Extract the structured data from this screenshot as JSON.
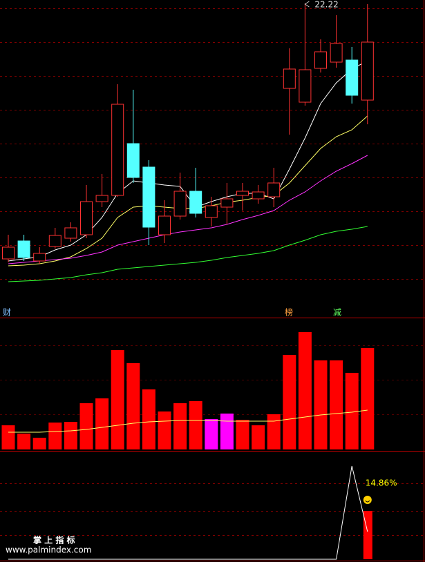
{
  "chart_data": [
    {
      "type": "candlestick",
      "open": [
        14.82,
        15.34,
        14.76,
        15.18,
        15.42,
        15.52,
        16.48,
        16.66,
        18.16,
        17.48,
        15.52,
        16.06,
        16.78,
        16.02,
        16.32,
        16.66,
        16.56,
        16.62,
        19.76,
        19.36,
        20.34,
        20.52,
        20.58,
        19.42
      ],
      "high": [
        15.52,
        15.52,
        15.16,
        15.72,
        15.88,
        16.96,
        17.28,
        19.88,
        19.72,
        17.68,
        16.52,
        17.32,
        17.46,
        16.62,
        17.02,
        17.02,
        16.96,
        17.46,
        20.92,
        22.22,
        21.18,
        21.88,
        20.96,
        22.2
      ],
      "low": [
        14.72,
        14.76,
        14.68,
        15.12,
        15.32,
        15.42,
        16.32,
        16.62,
        17.02,
        15.22,
        15.28,
        15.96,
        16.02,
        15.76,
        15.82,
        16.22,
        16.42,
        16.32,
        18.42,
        19.26,
        20.22,
        20.36,
        19.32,
        18.72
      ],
      "close": [
        15.16,
        14.86,
        14.98,
        15.5,
        15.72,
        16.48,
        16.66,
        19.3,
        17.18,
        15.74,
        16.06,
        16.78,
        16.14,
        16.36,
        16.56,
        16.78,
        16.76,
        17.02,
        20.32,
        20.3,
        20.82,
        21.06,
        19.56,
        21.1
      ],
      "up_color": "#ff3232",
      "down_color": "#54ffff",
      "annotation": "22.22",
      "labels": [
        {
          "text": "财",
          "color": "#7fbfff"
        },
        {
          "text": "榜",
          "color": "#ff9f3f"
        },
        {
          "text": "减",
          "color": "#5fff5f"
        }
      ],
      "lines": [
        {
          "color": "#ffffff",
          "values": [
            14.76,
            14.82,
            14.88,
            15.08,
            15.22,
            15.52,
            16.02,
            16.72,
            17.08,
            17.02,
            16.96,
            16.92,
            16.32,
            16.48,
            16.62,
            16.72,
            16.72,
            16.56,
            17.42,
            18.32,
            19.32,
            19.92,
            20.32,
            20.56
          ]
        },
        {
          "color": "#ffff66",
          "values": [
            14.62,
            14.64,
            14.68,
            14.76,
            14.88,
            15.12,
            15.42,
            16.02,
            16.32,
            16.36,
            16.32,
            16.28,
            16.28,
            16.36,
            16.46,
            16.52,
            16.6,
            16.66,
            17.02,
            17.52,
            18.02,
            18.36,
            18.56,
            18.96
          ]
        },
        {
          "color": "#ff33ff",
          "values": [
            14.68,
            14.72,
            14.76,
            14.8,
            14.84,
            14.92,
            15.02,
            15.22,
            15.32,
            15.42,
            15.52,
            15.6,
            15.66,
            15.72,
            15.82,
            15.96,
            16.08,
            16.22,
            16.52,
            16.76,
            17.08,
            17.36,
            17.58,
            17.82
          ]
        },
        {
          "color": "#33ff33",
          "values": [
            14.16,
            14.18,
            14.2,
            14.24,
            14.28,
            14.36,
            14.42,
            14.52,
            14.56,
            14.6,
            14.64,
            14.68,
            14.72,
            14.78,
            14.86,
            14.92,
            14.98,
            15.06,
            15.22,
            15.36,
            15.52,
            15.62,
            15.68,
            15.76
          ]
        }
      ],
      "ylim": [
        13.52,
        22.32
      ]
    },
    {
      "type": "bar",
      "values": [
        35,
        23,
        17,
        39,
        40,
        67,
        74,
        144,
        125,
        87,
        55,
        67,
        70,
        44,
        52,
        43,
        35,
        51,
        137,
        170,
        129,
        129,
        111,
        147
      ],
      "colors": [
        "#ff0000",
        "#ff0000",
        "#ff0000",
        "#ff0000",
        "#ff0000",
        "#ff0000",
        "#ff0000",
        "#ff0000",
        "#ff0000",
        "#ff0000",
        "#ff0000",
        "#ff0000",
        "#ff0000",
        "#ff00ff",
        "#ff00ff",
        "#ff0000",
        "#ff0000",
        "#ff0000",
        "#ff0000",
        "#ff0000",
        "#ff0000",
        "#ff0000",
        "#ff0000",
        "#ff0000"
      ],
      "line": {
        "color": "#ffff66",
        "values": [
          25,
          25,
          25,
          26,
          27,
          29,
          32,
          35,
          38,
          40,
          41,
          42,
          42,
          42,
          41,
          41,
          41,
          41,
          44,
          47,
          50,
          52,
          54,
          57
        ]
      },
      "ylim": [
        0,
        191
      ]
    },
    {
      "type": "line",
      "values": [
        0,
        0,
        0,
        0,
        0,
        0,
        0,
        0,
        0,
        0,
        0,
        0,
        0,
        0,
        0,
        0,
        0,
        0,
        0,
        0,
        0,
        0,
        135,
        40
      ],
      "color": "#ffffff",
      "bar_values": [
        null,
        null,
        null,
        null,
        null,
        null,
        null,
        null,
        null,
        null,
        null,
        null,
        null,
        null,
        null,
        null,
        null,
        null,
        null,
        null,
        null,
        null,
        null,
        70
      ],
      "bar_color": "#ff0000",
      "annotation": "14.86%",
      "annotation_color": "#ffff00",
      "watermark": [
        "掌 上 指 标",
        "www.palmindex.com"
      ],
      "ylim": [
        0,
        155
      ]
    }
  ]
}
